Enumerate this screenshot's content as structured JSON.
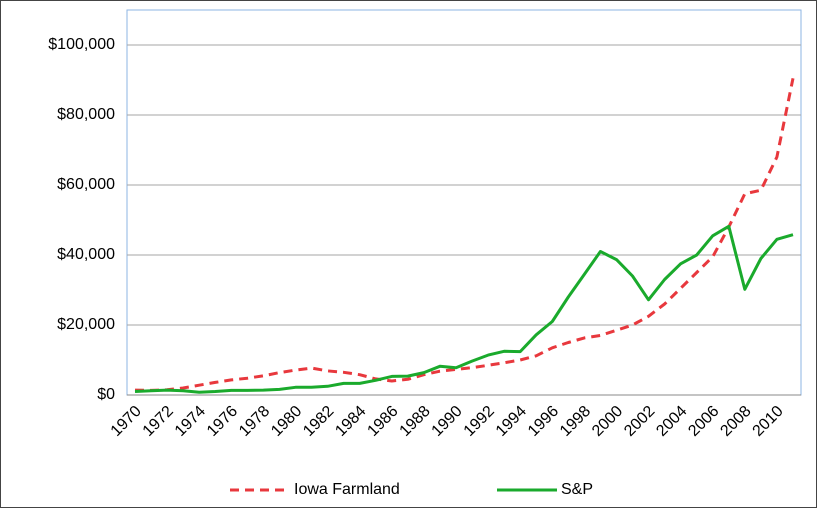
{
  "chart_data": {
    "type": "line",
    "categories": [
      "1970",
      null,
      "1972",
      null,
      "1974",
      null,
      "1976",
      null,
      "1978",
      null,
      "1980",
      null,
      "1982",
      null,
      "1984",
      null,
      "1986",
      null,
      "1988",
      null,
      "1990",
      null,
      "1992",
      null,
      "1994",
      null,
      "1996",
      null,
      "1998",
      null,
      "2000",
      null,
      "2002",
      null,
      "2004",
      null,
      "2006",
      null,
      "2008",
      null,
      "2010",
      null
    ],
    "series": [
      {
        "name": "Iowa Farmland",
        "color": "#e8383d",
        "line_style": "dashed",
        "values": [
          1400,
          1300,
          1500,
          2000,
          2800,
          3600,
          4300,
          4800,
          5500,
          6400,
          7100,
          7700,
          6900,
          6500,
          5800,
          4600,
          4000,
          4500,
          5800,
          6800,
          7300,
          7800,
          8500,
          9200,
          10000,
          11200,
          13500,
          15000,
          16300,
          17000,
          18500,
          20000,
          22500,
          26000,
          30500,
          35000,
          39500,
          48000,
          57500,
          58500,
          68000,
          90500
        ]
      },
      {
        "name": "S&P",
        "color": "#1aaa2c",
        "line_style": "solid",
        "values": [
          1000,
          1200,
          1400,
          1200,
          800,
          1000,
          1300,
          1300,
          1400,
          1600,
          2200,
          2200,
          2500,
          3300,
          3300,
          4200,
          5300,
          5400,
          6400,
          8200,
          7800,
          9700,
          11400,
          12500,
          12400,
          17200,
          21000,
          28000,
          34500,
          41000,
          38700,
          34000,
          27200,
          33000,
          37500,
          40000,
          45500,
          48200,
          30200,
          39000,
          44500,
          45800
        ]
      }
    ],
    "ylim": [
      0,
      110000
    ],
    "yticks": [
      {
        "value": 0,
        "label": "$0"
      },
      {
        "value": 20000,
        "label": "$20,000"
      },
      {
        "value": 40000,
        "label": "$40,000"
      },
      {
        "value": 60000,
        "label": "$60,000"
      },
      {
        "value": 80000,
        "label": "$80,000"
      },
      {
        "value": 100000,
        "label": "$100,000"
      }
    ],
    "grid": true,
    "legend": "bottom"
  }
}
